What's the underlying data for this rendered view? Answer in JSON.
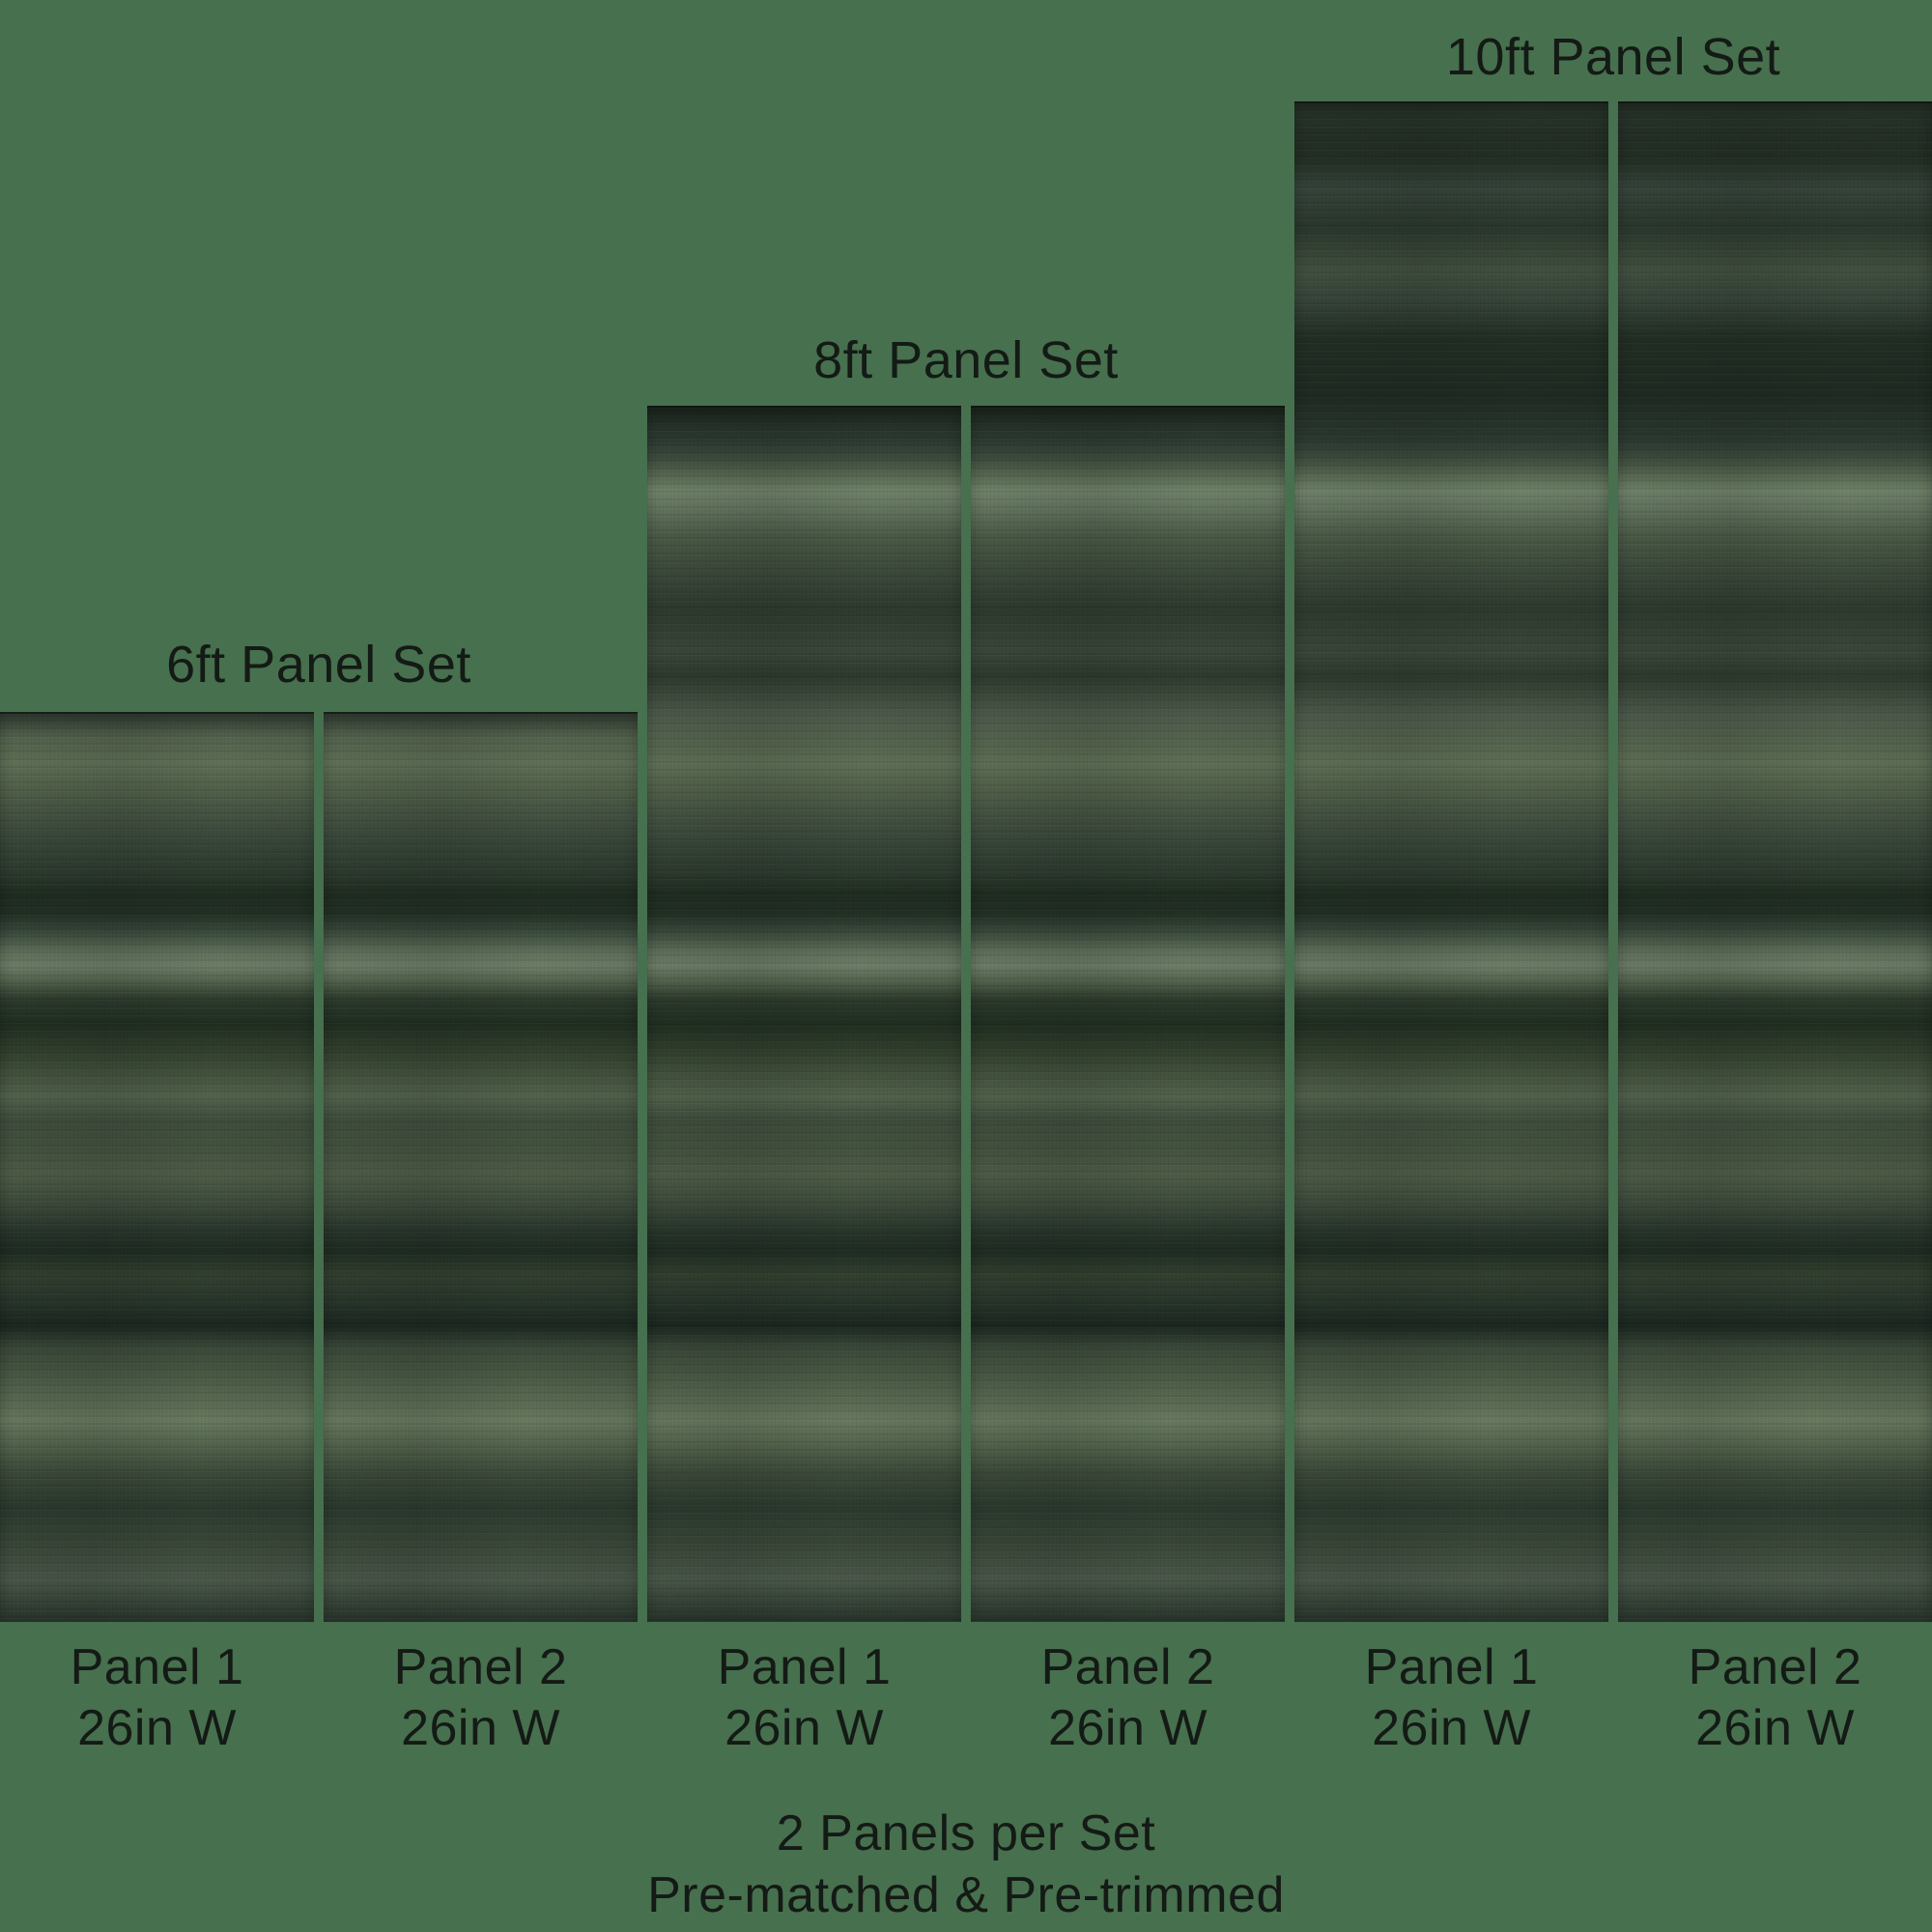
{
  "page": {
    "background_color": "#47704E",
    "text_color": "#141A15",
    "description": "Wallpaper panel set size diagram"
  },
  "sets": [
    {
      "title": "6ft Panel Set",
      "panels": [
        {
          "name": "Panel 1",
          "width": "26in W"
        },
        {
          "name": "Panel 2",
          "width": "26in W"
        }
      ]
    },
    {
      "title": "8ft Panel Set",
      "panels": [
        {
          "name": "Panel 1",
          "width": "26in W"
        },
        {
          "name": "Panel 2",
          "width": "26in W"
        }
      ]
    },
    {
      "title": "10ft Panel Set",
      "panels": [
        {
          "name": "Panel 1",
          "width": "26in W"
        },
        {
          "name": "Panel 2",
          "width": "26in W"
        }
      ]
    }
  ],
  "footer": {
    "line1": "2 Panels per Set",
    "line2": "Pre-matched & Pre-trimmed"
  },
  "texture": {
    "style": "dark green horizontal watercolor stripes",
    "palette": [
      "#1b2720",
      "#2c392d",
      "#3a4839",
      "#4b5a47",
      "#5f7057",
      "#70826a"
    ]
  }
}
